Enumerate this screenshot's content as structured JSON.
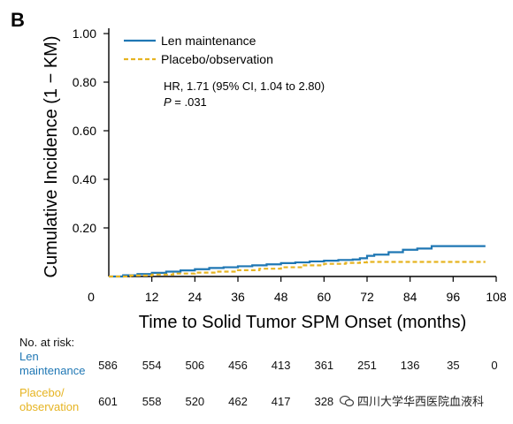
{
  "chart_data": {
    "type": "line",
    "panel_label": "B",
    "xlabel": "Time to Solid Tumor SPM Onset (months)",
    "ylabel": "Cumulative Incidence (1 − KM)",
    "xlim": [
      0,
      108
    ],
    "ylim": [
      0,
      1.0
    ],
    "x_ticks": [
      0,
      12,
      24,
      36,
      48,
      60,
      72,
      84,
      96,
      108
    ],
    "y_ticks": [
      0.2,
      0.4,
      0.6,
      0.8,
      1.0
    ],
    "y_tick_labels": [
      "0.20",
      "0.40",
      "0.60",
      "0.80",
      "1.00"
    ],
    "grid": false,
    "legend_position": "top-left",
    "annotation": {
      "hr_text": "HR, 1.71 (95% CI, 1.04 to 2.80)",
      "p_label": "P",
      "p_value": " = .031"
    },
    "series": [
      {
        "name": "Len maintenance",
        "color": "#1f77b4",
        "style": "solid",
        "x": [
          0,
          4,
          8,
          12,
          16,
          20,
          24,
          28,
          32,
          36,
          40,
          44,
          48,
          52,
          56,
          60,
          64,
          68,
          70,
          72,
          74,
          78,
          82,
          86,
          90,
          96,
          100,
          105
        ],
        "y": [
          0.0,
          0.005,
          0.01,
          0.015,
          0.02,
          0.025,
          0.03,
          0.035,
          0.038,
          0.042,
          0.046,
          0.05,
          0.055,
          0.058,
          0.062,
          0.065,
          0.068,
          0.07,
          0.075,
          0.085,
          0.09,
          0.1,
          0.11,
          0.115,
          0.125,
          0.125,
          0.125,
          0.125
        ]
      },
      {
        "name": "Placebo/observation",
        "color": "#e6b422",
        "style": "dashed",
        "x": [
          0,
          6,
          12,
          18,
          24,
          30,
          36,
          42,
          48,
          54,
          60,
          66,
          70,
          72,
          80,
          90,
          100,
          105
        ],
        "y": [
          0.0,
          0.004,
          0.008,
          0.012,
          0.016,
          0.02,
          0.026,
          0.032,
          0.038,
          0.046,
          0.052,
          0.056,
          0.058,
          0.06,
          0.06,
          0.06,
          0.06,
          0.06
        ]
      }
    ],
    "at_risk": {
      "header": "No. at risk:",
      "times": [
        0,
        12,
        24,
        36,
        48,
        60,
        72,
        84,
        96,
        108
      ],
      "rows": [
        {
          "label_line1": "Len",
          "label_line2": "maintenance",
          "color": "#1f77b4",
          "values": [
            "586",
            "554",
            "506",
            "456",
            "413",
            "361",
            "251",
            "136",
            "35",
            "0"
          ]
        },
        {
          "label_line1": "Placebo/",
          "label_line2": "observation",
          "color": "#e6b422",
          "values": [
            "601",
            "558",
            "520",
            "462",
            "417",
            "328",
            "",
            "",
            "",
            ""
          ]
        }
      ]
    }
  },
  "watermark": {
    "text": "四川大学华西医院血液科",
    "icon": "wechat-icon"
  }
}
